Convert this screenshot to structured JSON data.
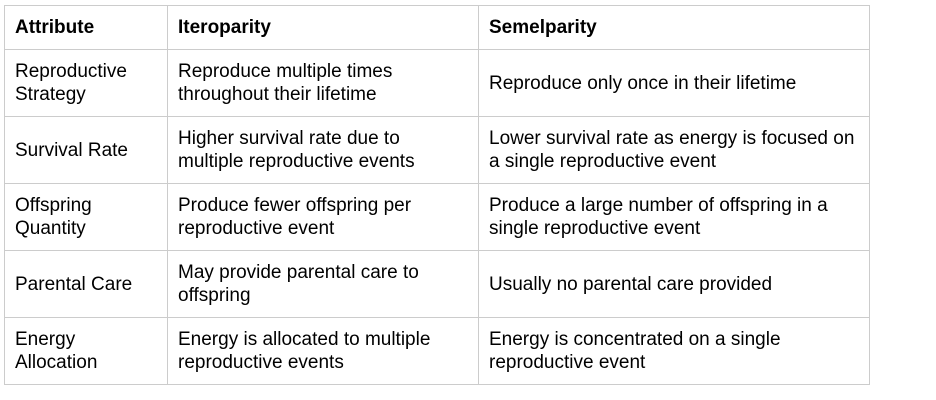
{
  "table": {
    "headers": [
      "Attribute",
      "Iteroparity",
      "Semelparity"
    ],
    "rows": [
      [
        "Reproductive Strategy",
        "Reproduce multiple times throughout their lifetime",
        "Reproduce only once in their lifetime"
      ],
      [
        "Survival Rate",
        "Higher survival rate due to multiple reproductive events",
        "Lower survival rate as energy is focused on a single reproductive event"
      ],
      [
        "Offspring Quantity",
        "Produce fewer offspring per reproductive event",
        "Produce a large number of offspring in a single reproductive event"
      ],
      [
        "Parental Care",
        "May provide parental care to offspring",
        "Usually no parental care provided"
      ],
      [
        "Energy Allocation",
        "Energy is allocated to multiple reproductive events",
        "Energy is concentrated on a single reproductive event"
      ]
    ]
  }
}
